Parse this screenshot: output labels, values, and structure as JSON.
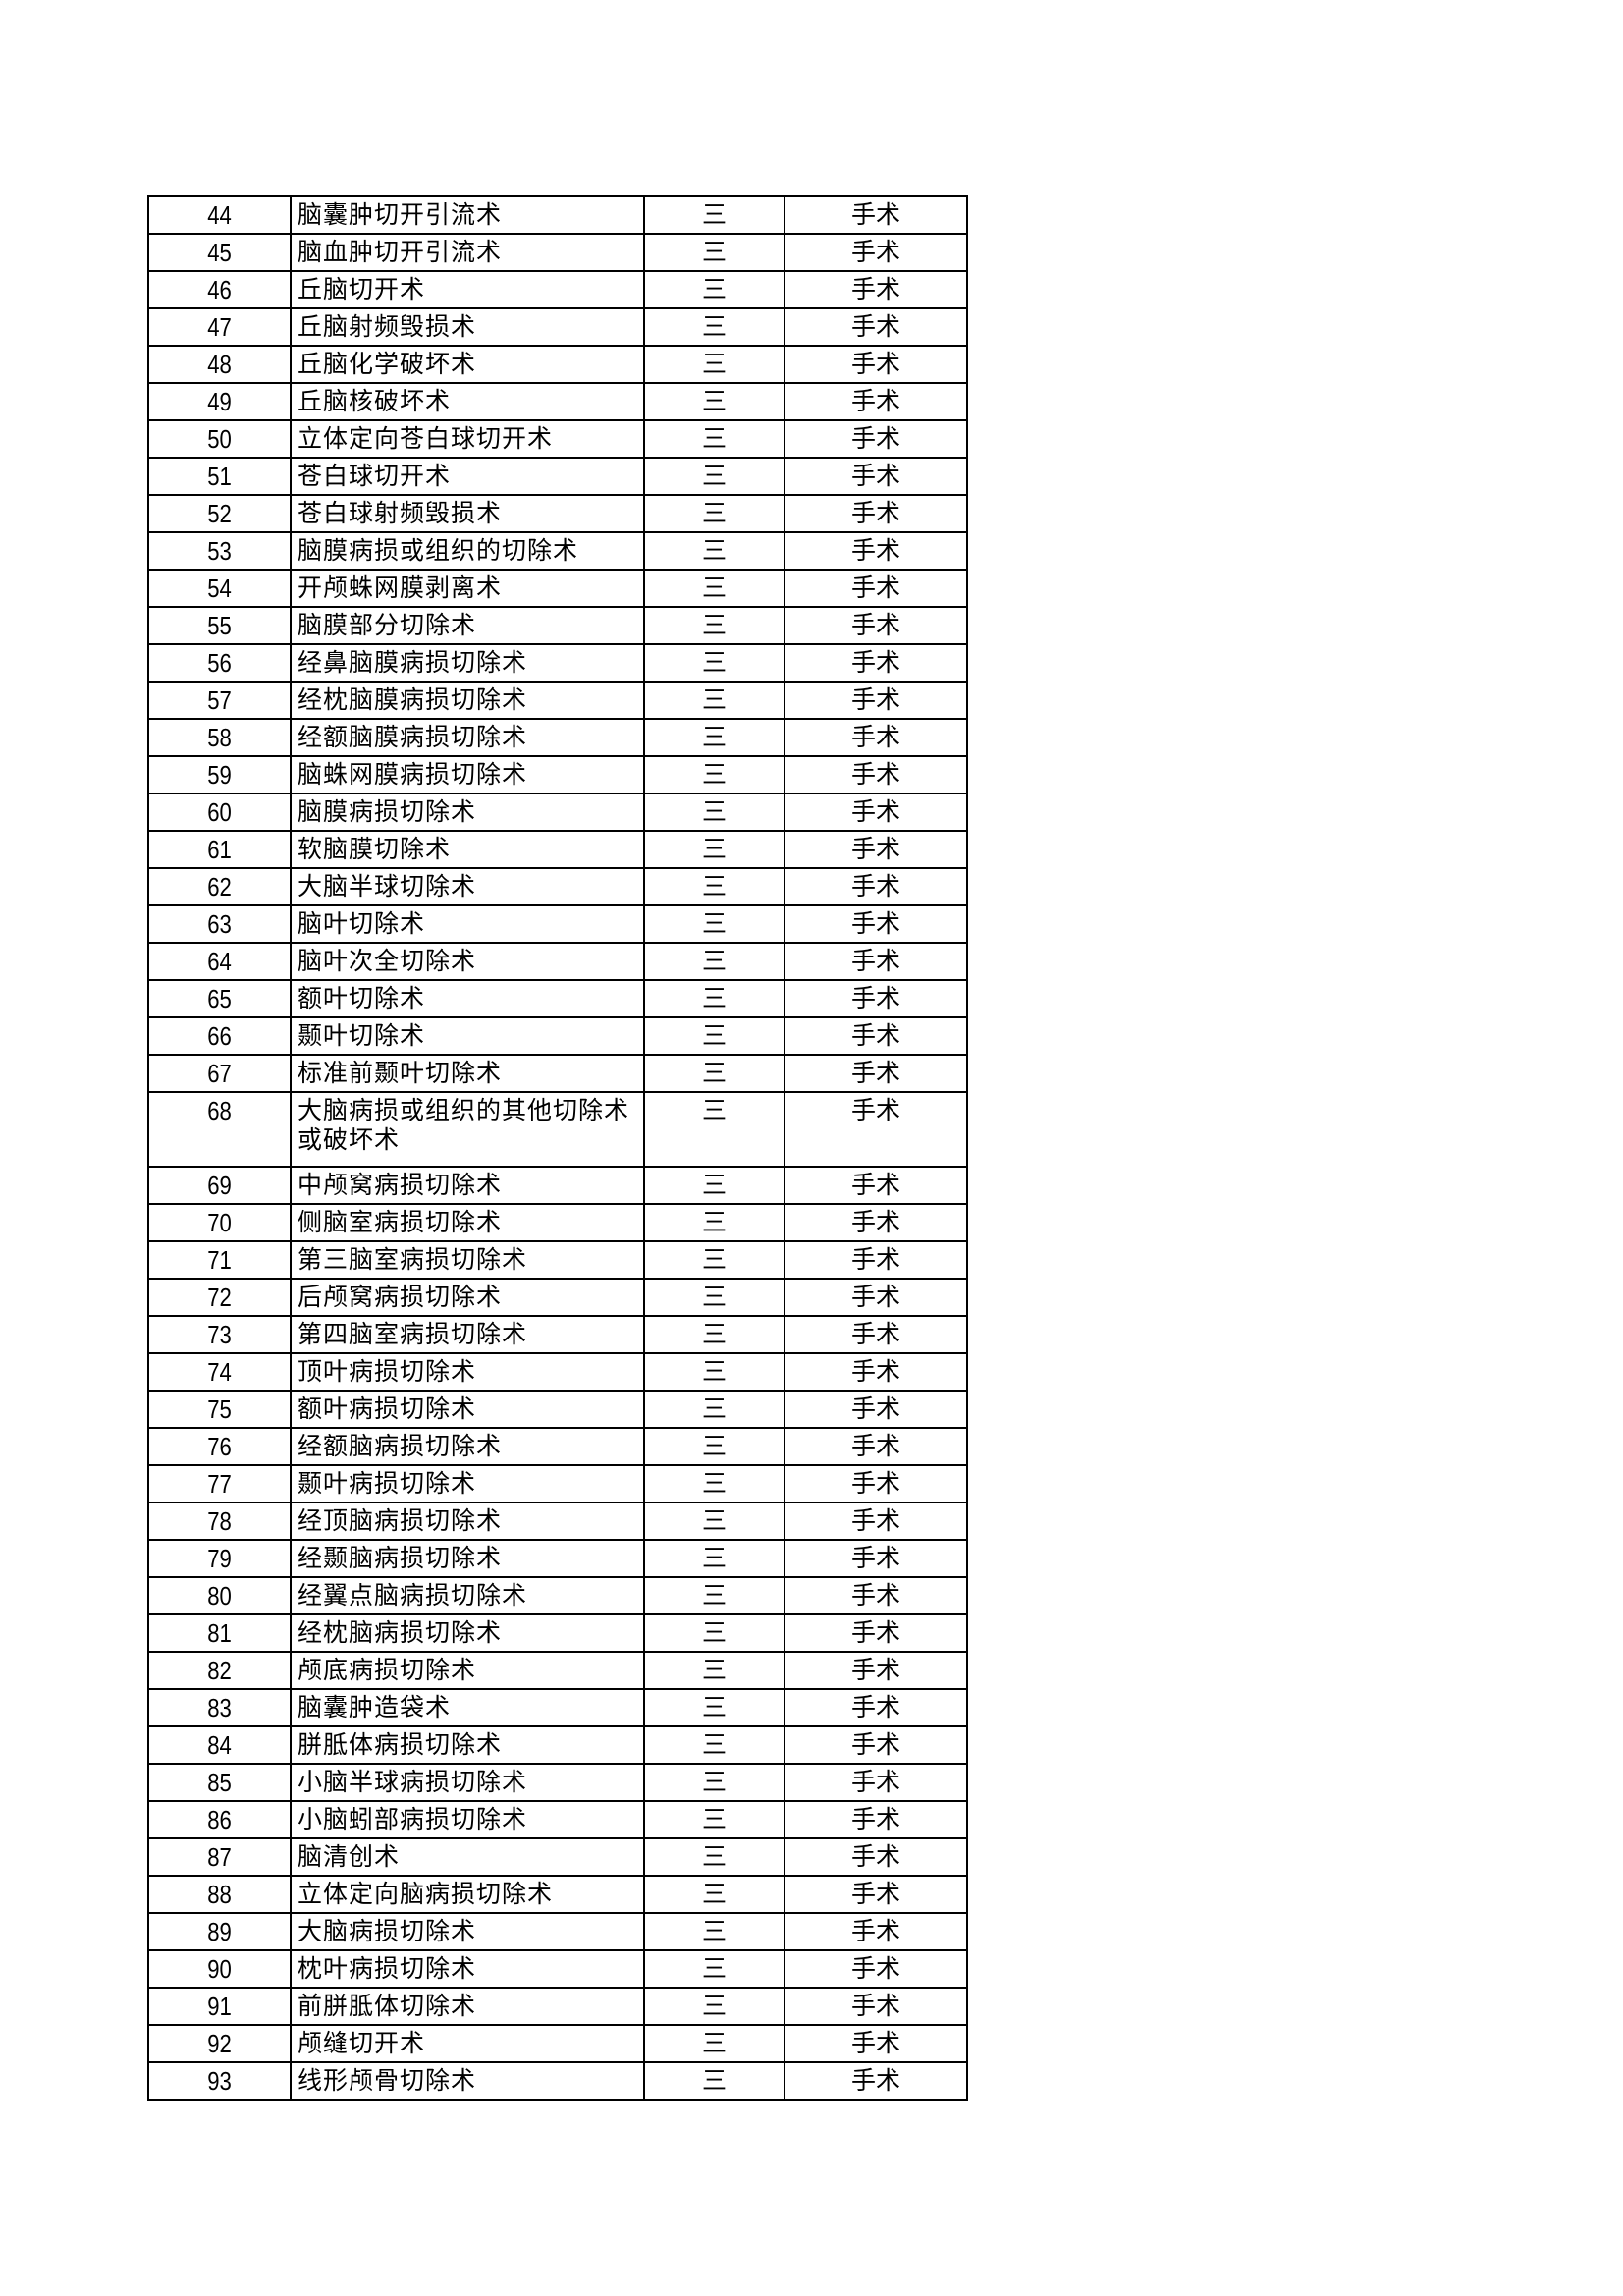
{
  "rows": [
    [
      "44",
      "脑囊肿切开引流术",
      "三",
      "手术"
    ],
    [
      "45",
      "脑血肿切开引流术",
      "三",
      "手术"
    ],
    [
      "46",
      "丘脑切开术",
      "三",
      "手术"
    ],
    [
      "47",
      "丘脑射频毁损术",
      "三",
      "手术"
    ],
    [
      "48",
      "丘脑化学破坏术",
      "三",
      "手术"
    ],
    [
      "49",
      "丘脑核破坏术",
      "三",
      "手术"
    ],
    [
      "50",
      "立体定向苍白球切开术",
      "三",
      "手术"
    ],
    [
      "51",
      "苍白球切开术",
      "三",
      "手术"
    ],
    [
      "52",
      "苍白球射频毁损术",
      "三",
      "手术"
    ],
    [
      "53",
      "脑膜病损或组织的切除术",
      "三",
      "手术"
    ],
    [
      "54",
      "开颅蛛网膜剥离术",
      "三",
      "手术"
    ],
    [
      "55",
      "脑膜部分切除术",
      "三",
      "手术"
    ],
    [
      "56",
      "经鼻脑膜病损切除术",
      "三",
      "手术"
    ],
    [
      "57",
      "经枕脑膜病损切除术",
      "三",
      "手术"
    ],
    [
      "58",
      "经额脑膜病损切除术",
      "三",
      "手术"
    ],
    [
      "59",
      "脑蛛网膜病损切除术",
      "三",
      "手术"
    ],
    [
      "60",
      "脑膜病损切除术",
      "三",
      "手术"
    ],
    [
      "61",
      "软脑膜切除术",
      "三",
      "手术"
    ],
    [
      "62",
      "大脑半球切除术",
      "三",
      "手术"
    ],
    [
      "63",
      "脑叶切除术",
      "三",
      "手术"
    ],
    [
      "64",
      "脑叶次全切除术",
      "三",
      "手术"
    ],
    [
      "65",
      "额叶切除术",
      "三",
      "手术"
    ],
    [
      "66",
      "颞叶切除术",
      "三",
      "手术"
    ],
    [
      "67",
      "标准前颞叶切除术",
      "三",
      "手术"
    ],
    [
      "68",
      "大脑病损或组织的其他切除术或破坏术",
      "三",
      "手术"
    ],
    [
      "69",
      "中颅窝病损切除术",
      "三",
      "手术"
    ],
    [
      "70",
      "侧脑室病损切除术",
      "三",
      "手术"
    ],
    [
      "71",
      "第三脑室病损切除术",
      "三",
      "手术"
    ],
    [
      "72",
      "后颅窝病损切除术",
      "三",
      "手术"
    ],
    [
      "73",
      "第四脑室病损切除术",
      "三",
      "手术"
    ],
    [
      "74",
      "顶叶病损切除术",
      "三",
      "手术"
    ],
    [
      "75",
      "额叶病损切除术",
      "三",
      "手术"
    ],
    [
      "76",
      "经额脑病损切除术",
      "三",
      "手术"
    ],
    [
      "77",
      "颞叶病损切除术",
      "三",
      "手术"
    ],
    [
      "78",
      "经顶脑病损切除术",
      "三",
      "手术"
    ],
    [
      "79",
      "经颞脑病损切除术",
      "三",
      "手术"
    ],
    [
      "80",
      "经翼点脑病损切除术",
      "三",
      "手术"
    ],
    [
      "81",
      "经枕脑病损切除术",
      "三",
      "手术"
    ],
    [
      "82",
      "颅底病损切除术",
      "三",
      "手术"
    ],
    [
      "83",
      "脑囊肿造袋术",
      "三",
      "手术"
    ],
    [
      "84",
      "胼胝体病损切除术",
      "三",
      "手术"
    ],
    [
      "85",
      "小脑半球病损切除术",
      "三",
      "手术"
    ],
    [
      "86",
      "小脑蚓部病损切除术",
      "三",
      "手术"
    ],
    [
      "87",
      "脑清创术",
      "三",
      "手术"
    ],
    [
      "88",
      "立体定向脑病损切除术",
      "三",
      "手术"
    ],
    [
      "89",
      "大脑病损切除术",
      "三",
      "手术"
    ],
    [
      "90",
      "枕叶病损切除术",
      "三",
      "手术"
    ],
    [
      "91",
      "前胼胝体切除术",
      "三",
      "手术"
    ],
    [
      "92",
      "颅缝切开术",
      "三",
      "手术"
    ],
    [
      "93",
      "线形颅骨切除术",
      "三",
      "手术"
    ]
  ]
}
